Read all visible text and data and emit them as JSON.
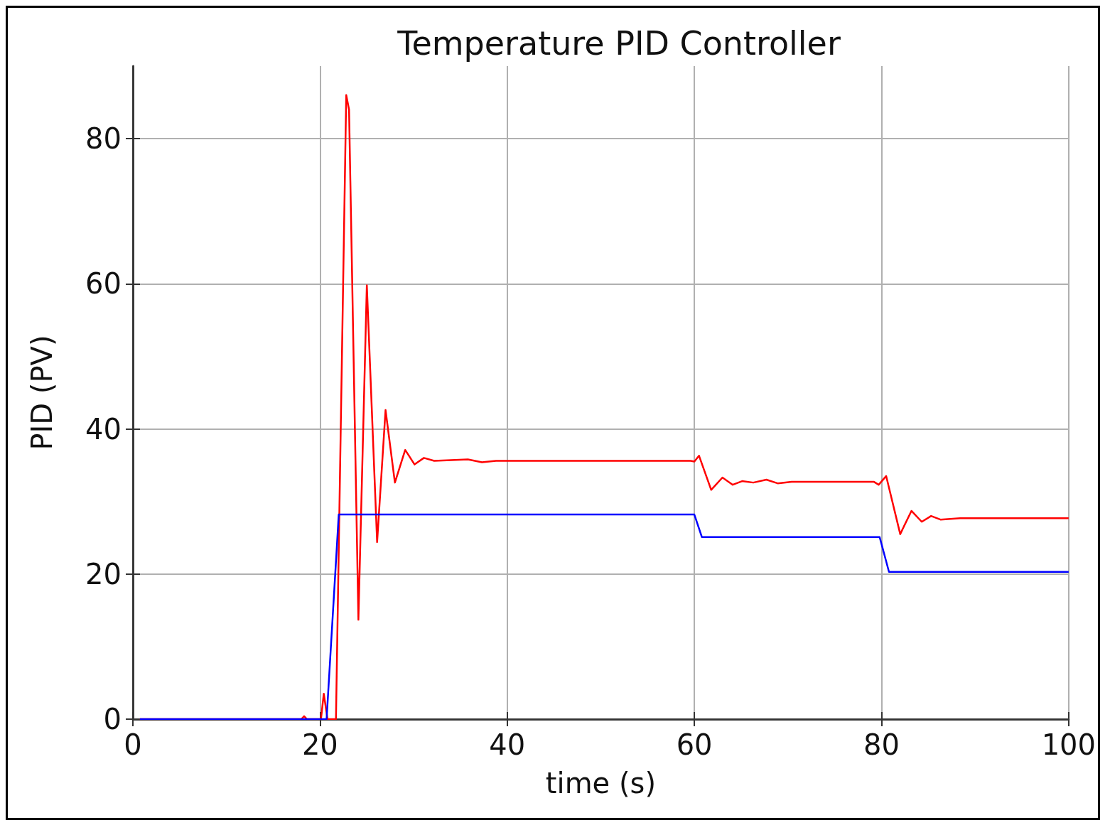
{
  "chart_data": {
    "type": "line",
    "title": "Temperature PID Controller",
    "xlabel": "time (s)",
    "ylabel": "PID (PV)",
    "xlim": [
      0,
      100
    ],
    "xticks": [
      0,
      20,
      40,
      60,
      80,
      100
    ],
    "ylim": [
      0,
      90
    ],
    "yticks": [
      0,
      20,
      40,
      60,
      80
    ],
    "grid": true,
    "line_style": "solid",
    "marker": "none",
    "series": [
      {
        "color": "#ff0000",
        "x": [
          0.75,
          18,
          18.3,
          18.6,
          20.1,
          20.4,
          20.8,
          21.2,
          21.7,
          22.8,
          23.1,
          24.1,
          25.0,
          26.1,
          27.0,
          28.0,
          29.1,
          30.1,
          31.1,
          32.2,
          35.8,
          37.3,
          38.8,
          59.6,
          60.0,
          60.5,
          61.8,
          63.0,
          64.1,
          65.1,
          66.3,
          67.7,
          68.9,
          70.4,
          79.2,
          79.7,
          80.5,
          82.0,
          83.2,
          84.3,
          85.3,
          86.3,
          88.4,
          100
        ],
        "values": [
          0,
          0,
          0.4,
          0,
          0,
          3.5,
          0,
          0,
          0,
          86,
          84,
          13.7,
          59.8,
          24.4,
          42.6,
          32.6,
          37.1,
          35.1,
          36.0,
          35.6,
          35.8,
          35.4,
          35.6,
          35.6,
          35.5,
          36.3,
          31.6,
          33.3,
          32.3,
          32.8,
          32.6,
          33.0,
          32.5,
          32.7,
          32.7,
          32.3,
          33.5,
          25.5,
          28.7,
          27.2,
          28.0,
          27.5,
          27.7,
          27.7
        ]
      },
      {
        "color": "#0000ff",
        "x": [
          0.75,
          20.7,
          22.0,
          60.0,
          60.8,
          79.8,
          80.8,
          100
        ],
        "values": [
          0,
          0,
          28.2,
          28.2,
          25.1,
          25.1,
          20.3,
          20.3
        ]
      }
    ]
  }
}
